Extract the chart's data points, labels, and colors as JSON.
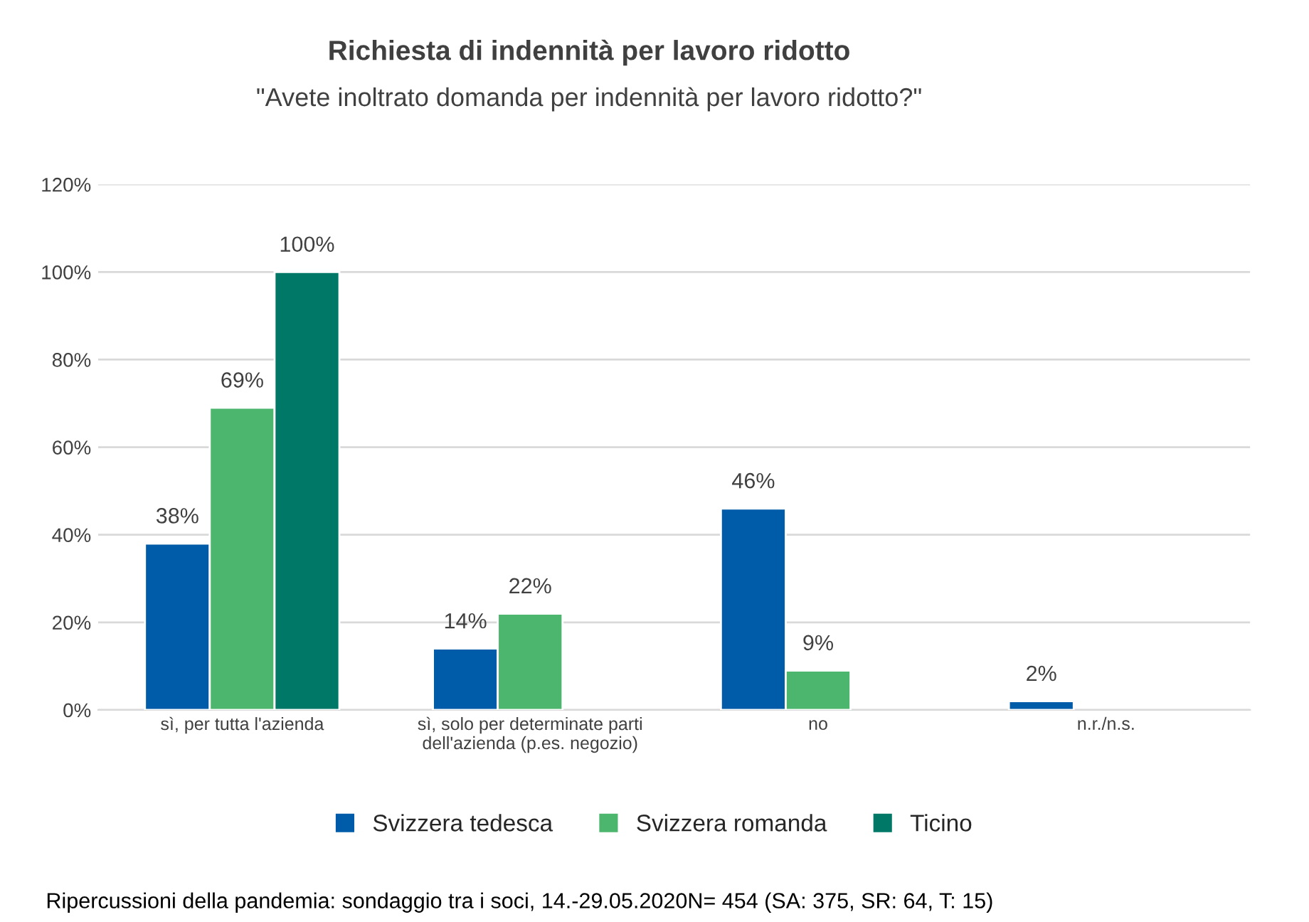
{
  "chart_data": {
    "type": "bar",
    "title": "Richiesta di indennità per lavoro ridotto",
    "subtitle": "\"Avete inoltrato domanda per indennità per lavoro ridotto?\"",
    "categories": [
      "sì, per tutta l'azienda",
      "sì, solo per determinate parti\ndell'azienda (p.es. negozio)",
      "no",
      "n.r./n.s."
    ],
    "series": [
      {
        "name": "Svizzera tedesca",
        "color": "#005ba8",
        "values": [
          38,
          14,
          46,
          2
        ],
        "value_labels": [
          "38%",
          "14%",
          "46%",
          "2%"
        ]
      },
      {
        "name": "Svizzera romanda",
        "color": "#4cb56e",
        "values": [
          69,
          22,
          9,
          null
        ],
        "value_labels": [
          "69%",
          "22%",
          "9%",
          null
        ]
      },
      {
        "name": "Ticino",
        "color": "#007868",
        "values": [
          100,
          null,
          null,
          null
        ],
        "value_labels": [
          "100%",
          null,
          null,
          null
        ]
      }
    ],
    "ylim": [
      0,
      120
    ],
    "yticks": [
      {
        "value": 0,
        "label": "0%"
      },
      {
        "value": 20,
        "label": "20%"
      },
      {
        "value": 40,
        "label": "40%"
      },
      {
        "value": 60,
        "label": "60%"
      },
      {
        "value": 80,
        "label": "80%"
      },
      {
        "value": 100,
        "label": "100%"
      },
      {
        "value": 120,
        "label": "120%"
      }
    ],
    "grid": "y",
    "legend": "bottom",
    "annotations": [
      "Ripercussioni della pandemia: sondaggio tra i soci, 14.-29.05.2020N= 454 (SA: 375, SR: 64, T: 15)"
    ]
  }
}
